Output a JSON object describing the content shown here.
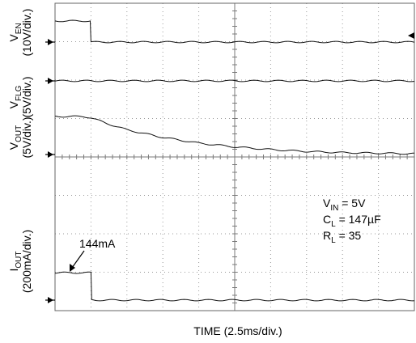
{
  "chart_data": {
    "type": "line",
    "title": "",
    "xlabel": "TIME (2.5ms/div.)",
    "x_units": "ms",
    "x_per_div_ms": 2.5,
    "x_range_ms": [
      0,
      25
    ],
    "divisions": {
      "x": 10,
      "y": 8
    },
    "grid": true,
    "channels": [
      {
        "key": "ven",
        "label_main": "V",
        "label_sub": "EN",
        "label_scale": "(10V/div.)",
        "scale_per_div": "10V",
        "points": [
          [
            0,
            0.9
          ],
          [
            2.45,
            0.9
          ],
          [
            2.5,
            0.0
          ],
          [
            25,
            0.0
          ]
        ]
      },
      {
        "key": "vflg",
        "label_main": "V",
        "label_sub": "FLG",
        "label_scale": "(5V/div.)",
        "scale_per_div": "5V",
        "points": [
          [
            0,
            0.0
          ],
          [
            25,
            0.0
          ]
        ]
      },
      {
        "key": "vout",
        "label_main": "V",
        "label_sub": "OUT",
        "label_scale": "(5V/div.)",
        "scale_per_div": "5V",
        "points": [
          [
            0,
            1.0
          ],
          [
            2.0,
            1.0
          ],
          [
            2.5,
            0.97
          ],
          [
            3.5,
            0.83
          ],
          [
            5.0,
            0.65
          ],
          [
            7.5,
            0.45
          ],
          [
            10.0,
            0.3
          ],
          [
            12.5,
            0.2
          ],
          [
            15.0,
            0.13
          ],
          [
            17.5,
            0.08
          ],
          [
            20.0,
            0.05
          ],
          [
            25.0,
            0.02
          ]
        ]
      },
      {
        "key": "iout",
        "label_main": "I",
        "label_sub": "OUT",
        "label_scale": "(200mA/div.)",
        "scale_per_div": "200mA",
        "points": [
          [
            0,
            0.72
          ],
          [
            2.5,
            0.72
          ],
          [
            2.55,
            0.0
          ],
          [
            25,
            0.0
          ]
        ]
      }
    ],
    "annotations": {
      "callout": "144mA",
      "conditions": [
        {
          "main": "V",
          "sub": "IN",
          "rest": " = 5V"
        },
        {
          "main": "C",
          "sub": "L",
          "rest": " = 147µF"
        },
        {
          "main": "R",
          "sub": "L",
          "rest": " = 35"
        }
      ]
    }
  }
}
